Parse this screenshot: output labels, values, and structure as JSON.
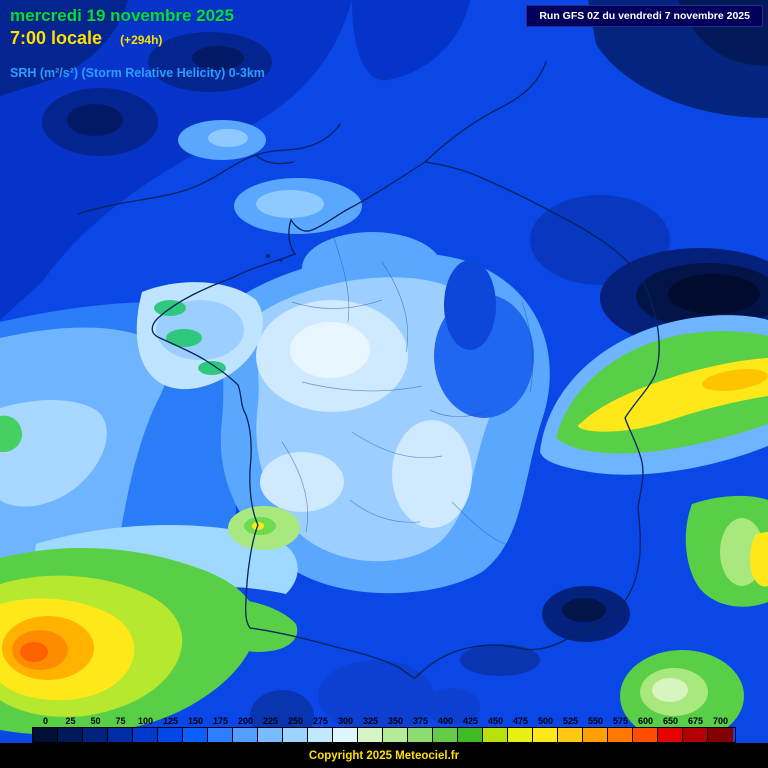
{
  "header": {
    "date_line": "mercredi 19 novembre 2025",
    "time_line": "7:00 locale",
    "offset": "(+294h)",
    "param_line": "SRH (m²/s²) (Storm Relative Helicity) 0-3km",
    "run_label": "Run GFS 0Z du vendredi 7 novembre 2025"
  },
  "legend": {
    "values": [
      "0",
      "25",
      "50",
      "75",
      "100",
      "125",
      "150",
      "175",
      "200",
      "225",
      "250",
      "275",
      "300",
      "325",
      "350",
      "375",
      "400",
      "425",
      "450",
      "475",
      "500",
      "525",
      "550",
      "575",
      "600",
      "650",
      "675",
      "700"
    ],
    "colors": [
      "#001033",
      "#001a59",
      "#002380",
      "#002da6",
      "#0039cc",
      "#0048e6",
      "#0a5fff",
      "#2e7fff",
      "#539eff",
      "#78bcff",
      "#9cd4ff",
      "#c0e8ff",
      "#e0f6ff",
      "#d6f5c6",
      "#b4eb9b",
      "#8edd72",
      "#65cc4a",
      "#3fbb27",
      "#b8e00e",
      "#e8ef12",
      "#ffe81a",
      "#ffc812",
      "#ffa000",
      "#ff7800",
      "#ff4d00",
      "#e60000",
      "#b30000",
      "#800000"
    ]
  },
  "footer": {
    "copyright": "Copyright 2025 Meteociel.fr"
  },
  "ui_colors": {
    "date_text": "#00dd3c",
    "time_text": "#ffdf00",
    "param_text": "#2a9dff",
    "run_box_bg": "#00005c",
    "run_box_text": "#ffffff",
    "legend_text": "#000011",
    "copyright_text": "#ffdf00",
    "footer_bg": "#000000"
  }
}
